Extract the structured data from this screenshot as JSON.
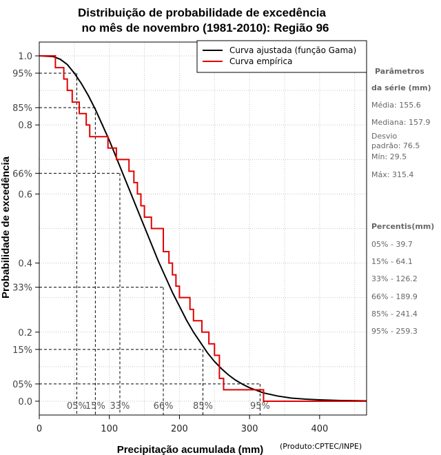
{
  "chart_data": {
    "type": "line",
    "title_line1": "Distribuição de probabilidade de excedência",
    "title_line2": "no mês de novembro (1981-2010): Região 96",
    "xlabel": "Precipitação acumulada (mm)",
    "ylabel": "Probabilidade de excedência",
    "credit": "(Produto:CPTEC/INPE)",
    "xlim": [
      0,
      467
    ],
    "ylim": [
      -0.04,
      1.04
    ],
    "x_ticks": [
      0,
      100,
      200,
      300,
      400
    ],
    "y_ticks": [
      {
        "value": 1.0,
        "label": "1.0"
      },
      {
        "value": 0.95,
        "label": "95%"
      },
      {
        "value": 0.85,
        "label": "85%"
      },
      {
        "value": 0.8,
        "label": "0.8"
      },
      {
        "value": 0.66,
        "label": "66%"
      },
      {
        "value": 0.6,
        "label": "0.6"
      },
      {
        "value": 0.4,
        "label": "0.4"
      },
      {
        "value": 0.33,
        "label": "33%"
      },
      {
        "value": 0.2,
        "label": "0.2"
      },
      {
        "value": 0.15,
        "label": "15%"
      },
      {
        "value": 0.05,
        "label": "05%"
      },
      {
        "value": 0.0,
        "label": "0.0"
      }
    ],
    "grid_x": [
      0,
      50,
      100,
      150,
      200,
      250,
      300,
      350,
      400,
      450
    ],
    "grid_y": [
      0.0,
      0.1,
      0.2,
      0.3,
      0.4,
      0.5,
      0.6,
      0.7,
      0.8,
      0.9,
      1.0
    ],
    "legend": {
      "placement": "top-right",
      "entries": [
        {
          "label": "Curva ajustada (função Gama)",
          "color": "#000000"
        },
        {
          "label": "Curva empírica",
          "color": "#e00000"
        }
      ]
    },
    "series": [
      {
        "name": "Curva ajustada (função Gama)",
        "color": "#000000",
        "x": [
          0,
          20,
          30,
          40,
          50,
          60,
          70,
          80,
          90,
          100,
          110,
          120,
          130,
          140,
          150,
          160,
          170,
          180,
          190,
          200,
          210,
          220,
          230,
          240,
          250,
          260,
          270,
          280,
          290,
          300,
          320,
          340,
          360,
          380,
          400,
          430,
          467
        ],
        "y": [
          1.0,
          0.998,
          0.99,
          0.975,
          0.95,
          0.92,
          0.885,
          0.845,
          0.8,
          0.755,
          0.705,
          0.655,
          0.605,
          0.555,
          0.505,
          0.455,
          0.405,
          0.36,
          0.315,
          0.275,
          0.235,
          0.2,
          0.17,
          0.14,
          0.115,
          0.094,
          0.076,
          0.061,
          0.049,
          0.039,
          0.024,
          0.015,
          0.009,
          0.006,
          0.004,
          0.002,
          0.001
        ]
      },
      {
        "name": "Curva empírica",
        "color": "#e00000",
        "step": true,
        "x": [
          0,
          23,
          30,
          35,
          40,
          47,
          52,
          57,
          62,
          67,
          72,
          78,
          90,
          98,
          103,
          110,
          115,
          128,
          135,
          140,
          145,
          150,
          160,
          170,
          177,
          185,
          190,
          195,
          200,
          213,
          215,
          220,
          232,
          237,
          242,
          250,
          257,
          263,
          285,
          300,
          320,
          467
        ],
        "y": [
          1.0,
          0.966,
          0.966,
          0.933,
          0.9,
          0.866,
          0.866,
          0.833,
          0.833,
          0.8,
          0.766,
          0.766,
          0.766,
          0.733,
          0.733,
          0.7,
          0.7,
          0.666,
          0.633,
          0.6,
          0.566,
          0.533,
          0.5,
          0.5,
          0.433,
          0.4,
          0.366,
          0.333,
          0.3,
          0.3,
          0.266,
          0.233,
          0.2,
          0.2,
          0.166,
          0.133,
          0.066,
          0.033,
          0.033,
          0.033,
          0.0,
          0.0
        ]
      }
    ],
    "percentile_markers": [
      {
        "label": "05%",
        "x": 53.5,
        "prob": 0.95
      },
      {
        "label": "15%",
        "x": 80.0,
        "prob": 0.85
      },
      {
        "label": "33%",
        "x": 115.0,
        "prob": 0.66
      },
      {
        "label": "66%",
        "x": 177.0,
        "prob": 0.33
      },
      {
        "label": "85%",
        "x": 233.5,
        "prob": 0.15
      },
      {
        "label": "95%",
        "x": 315.0,
        "prob": 0.05
      }
    ]
  },
  "side_panel": {
    "params_head1": "Parâmetros",
    "params_head2": "da série (mm)",
    "media": "Média: 155.6",
    "mediana": "Mediana: 157.9",
    "desvio1": "Desvio",
    "desvio2": "padrão: 76.5",
    "min": "Mín: 29.5",
    "max": "Máx: 315.4",
    "percentis_head": "Percentis(mm)",
    "percentis": [
      "05% - 39.7",
      "15% - 64.1",
      "33% - 126.2",
      "66% - 189.9",
      "85% - 241.4",
      "95% - 259.3"
    ]
  }
}
